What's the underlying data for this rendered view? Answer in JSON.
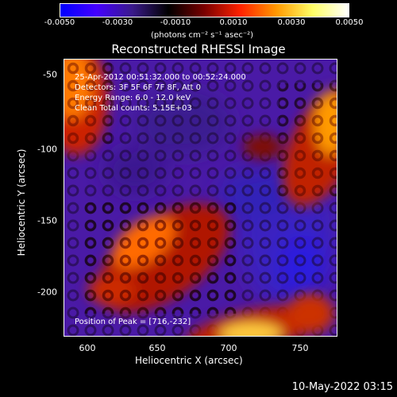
{
  "colorbar": {
    "ticks": [
      "-0.0050",
      "-0.0030",
      "-0.0010",
      "0.0010",
      "0.0030",
      "0.0050"
    ],
    "units": "(photons cm⁻² s⁻¹ asec⁻²)",
    "gradient": [
      "#0000ff",
      "#4400ff",
      "#3a1a8a",
      "#000000",
      "#7a0000",
      "#ff2200",
      "#ff9900",
      "#ffff66",
      "#ffffff"
    ]
  },
  "title": "Reconstructed RHESSI Image",
  "info": {
    "line1": "25-Apr-2012 00:51:32.000 to 00:52:24.000",
    "line2": "Detectors: 3F 5F 6F 7F 8F, Att 0",
    "line3": "Energy Range: 6.0 - 12.0 keV",
    "line4": "Clean     Total counts: 5.15E+03",
    "peak": "Position of Peak = [716,-232]"
  },
  "axes": {
    "x_label": "Heliocentric X (arcsec)",
    "y_label": "Heliocentric Y (arcsec)",
    "x_ticks": [
      "600",
      "650",
      "700",
      "750"
    ],
    "y_ticks": [
      "-50",
      "-100",
      "-150",
      "-200"
    ]
  },
  "timestamp": "10-May-2022 03:15"
}
